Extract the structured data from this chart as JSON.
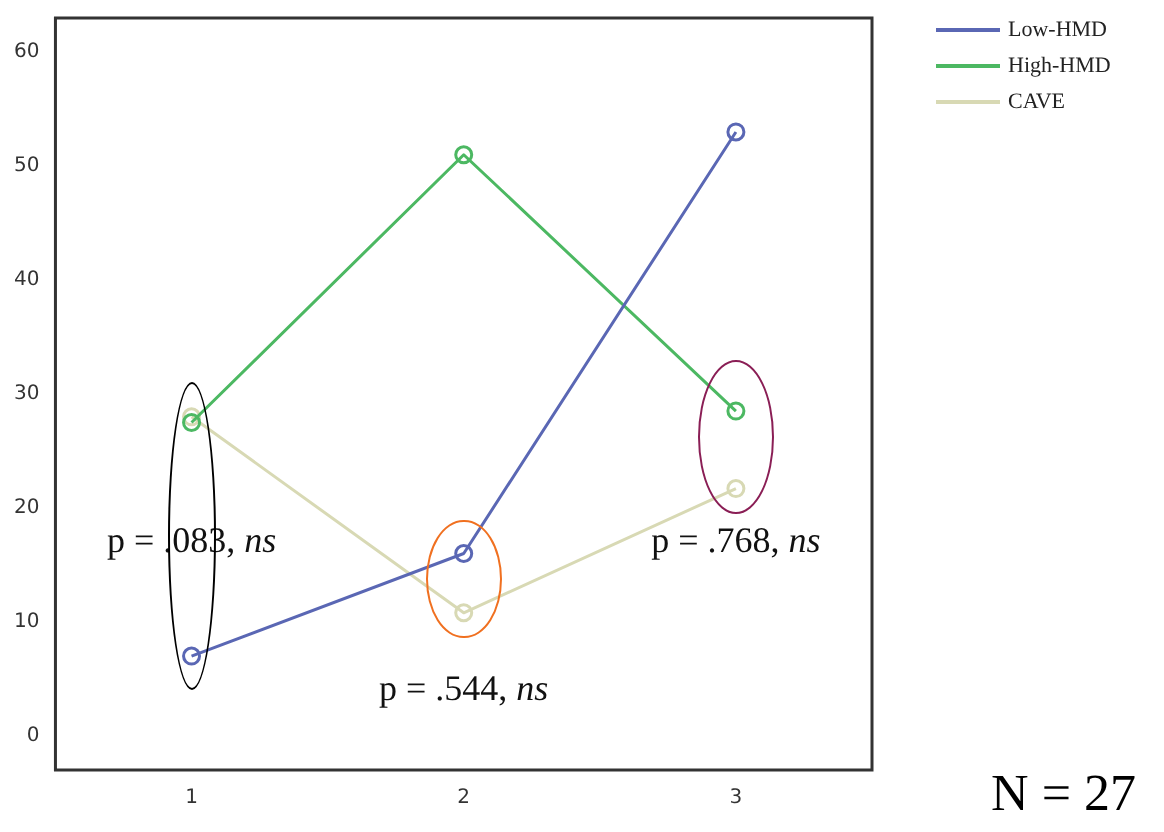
{
  "chart_data": {
    "type": "line",
    "categories": [
      "1",
      "2",
      "3"
    ],
    "series": [
      {
        "name": "Low-HMD",
        "color": "#5a67b4",
        "values": [
          7,
          16,
          53
        ]
      },
      {
        "name": "High-HMD",
        "color": "#4cb862",
        "values": [
          27.5,
          51,
          28.5
        ]
      },
      {
        "name": "CAVE",
        "color": "#d8d9b4",
        "values": [
          28,
          10.8,
          21.7
        ]
      }
    ],
    "ylim": [
      -3,
      63
    ],
    "yticks": [
      0,
      10,
      20,
      30,
      40,
      50,
      60
    ],
    "grid": false,
    "legend": "top right",
    "marker": "circle",
    "line_style": "solid",
    "annotations": [
      "p = .083, ns",
      "p = .544, ns",
      "p = .768, ns",
      "N = 27"
    ]
  }
}
